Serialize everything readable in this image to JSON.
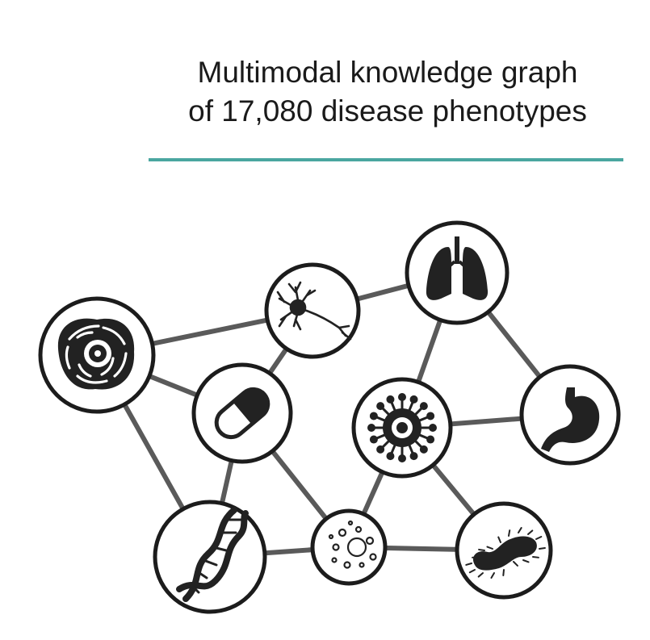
{
  "header": {
    "title_line1": "Multimodal knowledge graph",
    "title_line2": "of 17,080 disease phenotypes"
  },
  "colors": {
    "accent_rule": "#4aa6a0",
    "edge": "#5a5a5a",
    "node_stroke": "#1c1c1c",
    "icon": "#222222",
    "background": "#ffffff"
  },
  "graph": {
    "nodes": [
      {
        "id": "cell",
        "icon": "cell-nucleus-icon"
      },
      {
        "id": "neuron",
        "icon": "neuron-icon"
      },
      {
        "id": "lungs",
        "icon": "lungs-icon"
      },
      {
        "id": "pill",
        "icon": "pill-capsule-icon"
      },
      {
        "id": "virus",
        "icon": "virus-icon"
      },
      {
        "id": "stomach",
        "icon": "stomach-icon"
      },
      {
        "id": "dna",
        "icon": "dna-helix-icon"
      },
      {
        "id": "exposure",
        "icon": "particles-dish-icon"
      },
      {
        "id": "microbe",
        "icon": "bacterium-icon"
      }
    ],
    "edges": [
      [
        "cell",
        "neuron"
      ],
      [
        "cell",
        "pill"
      ],
      [
        "cell",
        "dna"
      ],
      [
        "neuron",
        "lungs"
      ],
      [
        "neuron",
        "pill"
      ],
      [
        "lungs",
        "virus"
      ],
      [
        "lungs",
        "stomach"
      ],
      [
        "virus",
        "stomach"
      ],
      [
        "virus",
        "exposure"
      ],
      [
        "virus",
        "microbe"
      ],
      [
        "pill",
        "dna"
      ],
      [
        "pill",
        "exposure"
      ],
      [
        "dna",
        "exposure"
      ],
      [
        "exposure",
        "microbe"
      ]
    ]
  }
}
